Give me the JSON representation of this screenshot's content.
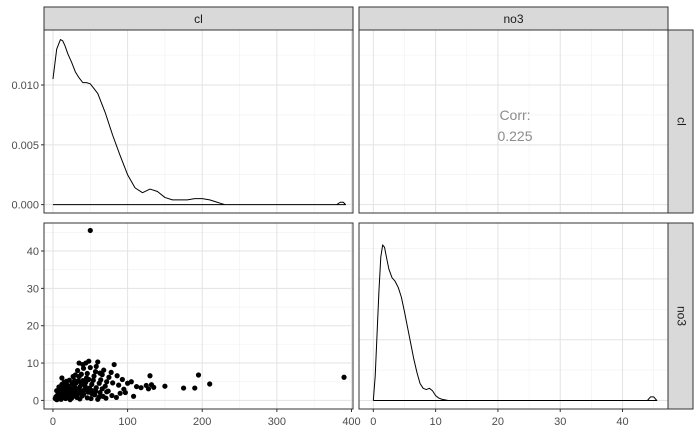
{
  "facet_labels": {
    "columns": [
      "cl",
      "no3"
    ],
    "rows": [
      "cl",
      "no3"
    ]
  },
  "chart_data": [
    {
      "panel": "cl x cl",
      "type": "line",
      "x": [
        0,
        5,
        10,
        13,
        16,
        20,
        25,
        30,
        35,
        40,
        45,
        50,
        60,
        70,
        80,
        90,
        100,
        110,
        120,
        130,
        140,
        150,
        160,
        170,
        180,
        190,
        200,
        210,
        220,
        225,
        230,
        300,
        380,
        385,
        389,
        392,
        0
      ],
      "y": [
        0.0105,
        0.013,
        0.0138,
        0.0137,
        0.0133,
        0.0126,
        0.0119,
        0.0111,
        0.0106,
        0.0102,
        0.0102,
        0.0101,
        0.0093,
        0.0077,
        0.0058,
        0.0041,
        0.0025,
        0.0014,
        0.001,
        0.0013,
        0.0011,
        0.0006,
        0.0004,
        0.0004,
        0.0004,
        0.0005,
        0.0005,
        0.0004,
        0.0002,
        0.0001,
        0.0,
        0.0,
        0.0,
        0.0002,
        0.0002,
        0.0,
        0.0
      ],
      "xlim": [
        -12,
        402
      ],
      "ylim": [
        -0.0007,
        0.0146
      ],
      "yticks": [
        0.0,
        0.005,
        0.01
      ],
      "ytick_labels": [
        "0.000",
        "0.005",
        "0.010"
      ]
    },
    {
      "panel": "no3 x cl",
      "type": "text",
      "text_lines": [
        "Corr:",
        "0.225"
      ],
      "text_color": "#8c8c8c",
      "xlim": [
        -2.3,
        47.3
      ],
      "ylim": [
        -0.7,
        14.6
      ]
    },
    {
      "panel": "cl x no3",
      "type": "scatter",
      "xticks": [
        0,
        100,
        200,
        300,
        400
      ],
      "xtick_labels": [
        "0",
        "100",
        "200",
        "300",
        "400"
      ],
      "yticks": [
        0,
        10,
        20,
        30,
        40
      ],
      "ytick_labels": [
        "0",
        "10",
        "20",
        "30",
        "40"
      ],
      "xlim": [
        -12,
        402
      ],
      "ylim": [
        -2.3,
        47.5
      ],
      "points": [
        [
          50,
          45.5
        ],
        [
          390,
          6.2
        ],
        [
          130,
          6.6
        ],
        [
          195,
          6.8
        ],
        [
          150,
          3.8
        ],
        [
          125,
          4.0
        ],
        [
          175,
          3.3
        ],
        [
          190,
          3.3
        ],
        [
          210,
          4.4
        ],
        [
          135,
          3.5
        ],
        [
          128,
          3.1
        ],
        [
          132,
          4.2
        ],
        [
          100,
          4.6
        ],
        [
          105,
          5.0
        ],
        [
          112,
          3.7
        ],
        [
          95,
          3.0
        ],
        [
          93,
          5.6
        ],
        [
          88,
          4.1
        ],
        [
          82,
          9.6
        ],
        [
          78,
          7.5
        ],
        [
          75,
          6.2
        ],
        [
          72,
          5.0
        ],
        [
          70,
          3.8
        ],
        [
          68,
          8.1
        ],
        [
          66,
          6.9
        ],
        [
          64,
          5.5
        ],
        [
          62,
          4.6
        ],
        [
          60,
          10.3
        ],
        [
          58,
          9.1
        ],
        [
          57,
          7.7
        ],
        [
          55,
          6.5
        ],
        [
          54,
          5.4
        ],
        [
          52,
          4.3
        ],
        [
          50,
          8.8
        ],
        [
          49,
          3.3
        ],
        [
          48,
          10.5
        ],
        [
          47,
          2.2
        ],
        [
          46,
          7.2
        ],
        [
          45,
          6.0
        ],
        [
          44,
          4.9
        ],
        [
          43,
          3.9
        ],
        [
          42,
          2.8
        ],
        [
          41,
          1.6
        ],
        [
          40,
          9.6
        ],
        [
          40,
          5.3
        ],
        [
          39,
          1.2
        ],
        [
          38,
          4.4
        ],
        [
          37,
          2.5
        ],
        [
          36,
          3.6
        ],
        [
          35,
          6.4
        ],
        [
          35,
          1.9
        ],
        [
          34,
          5.2
        ],
        [
          33,
          3.0
        ],
        [
          32,
          0.8
        ],
        [
          31,
          4.7
        ],
        [
          30,
          2.2
        ],
        [
          30,
          6.8
        ],
        [
          29,
          3.6
        ],
        [
          28,
          1.2
        ],
        [
          27,
          2.8
        ],
        [
          26,
          4.5
        ],
        [
          25,
          0.6
        ],
        [
          24,
          1.9
        ],
        [
          23,
          3.3
        ],
        [
          22,
          5.4
        ],
        [
          21,
          0.9
        ],
        [
          20,
          2.4
        ],
        [
          20,
          4.0
        ],
        [
          19,
          1.4
        ],
        [
          18,
          3.0
        ],
        [
          17,
          0.5
        ],
        [
          16,
          2.0
        ],
        [
          15,
          4.8
        ],
        [
          15,
          3.6
        ],
        [
          14,
          1.0
        ],
        [
          13,
          2.6
        ],
        [
          12,
          6.0
        ],
        [
          11,
          0.3
        ],
        [
          10,
          1.6
        ],
        [
          10,
          3.2
        ],
        [
          9,
          0.9
        ],
        [
          8,
          2.2
        ],
        [
          7,
          0.4
        ],
        [
          6,
          1.4
        ],
        [
          5,
          0.2
        ],
        [
          5,
          2.6
        ],
        [
          4,
          1.0
        ],
        [
          3,
          0.5
        ],
        [
          56,
          1.5
        ],
        [
          60,
          0.3
        ],
        [
          63,
          2.1
        ],
        [
          67,
          1.1
        ],
        [
          71,
          0.6
        ],
        [
          74,
          2.5
        ],
        [
          79,
          1.3
        ],
        [
          85,
          0.8
        ],
        [
          90,
          1.9
        ],
        [
          63,
          7.3
        ],
        [
          58,
          3.4
        ],
        [
          52,
          1.8
        ],
        [
          46,
          0.7
        ],
        [
          38,
          7.0
        ],
        [
          33,
          8.0
        ],
        [
          27,
          6.4
        ],
        [
          45,
          3.1
        ],
        [
          53,
          2.6
        ],
        [
          48,
          5.6
        ],
        [
          41,
          8.6
        ],
        [
          36,
          0.4
        ],
        [
          29,
          5.3
        ],
        [
          23,
          0.2
        ],
        [
          18,
          5.1
        ],
        [
          12,
          4.3
        ],
        [
          8,
          3.6
        ],
        [
          66,
          3.1
        ],
        [
          72,
          2.3
        ],
        [
          80,
          4.7
        ],
        [
          86,
          6.6
        ],
        [
          97,
          2.1
        ],
        [
          108,
          1.1
        ],
        [
          118,
          3.4
        ],
        [
          35,
          10.0
        ],
        [
          44,
          10.0
        ],
        [
          62,
          0.9
        ],
        [
          57,
          2.5
        ],
        [
          51,
          0.5
        ],
        [
          32,
          1.6
        ],
        [
          25,
          2.9
        ],
        [
          14,
          0.8
        ],
        [
          6,
          0.3
        ]
      ]
    },
    {
      "panel": "no3 x no3",
      "type": "line",
      "xticks": [
        0,
        10,
        20,
        30,
        40
      ],
      "xtick_labels": [
        "0",
        "10",
        "20",
        "30",
        "40"
      ],
      "x": [
        0,
        0.3,
        0.6,
        0.9,
        1.2,
        1.5,
        1.8,
        2.1,
        2.5,
        3.0,
        3.5,
        4.0,
        4.5,
        5.0,
        5.5,
        6.0,
        6.5,
        7.0,
        7.5,
        8.0,
        8.5,
        9.0,
        9.5,
        10.0,
        10.5,
        11.0,
        11.5,
        12.0,
        44.0,
        44.5,
        45.0,
        45.5,
        0
      ],
      "y": [
        0.0,
        0.02,
        0.055,
        0.09,
        0.118,
        0.128,
        0.126,
        0.118,
        0.108,
        0.101,
        0.098,
        0.093,
        0.085,
        0.073,
        0.06,
        0.047,
        0.034,
        0.023,
        0.014,
        0.01,
        0.009,
        0.01,
        0.008,
        0.004,
        0.002,
        0.001,
        0.0005,
        0.0,
        0.0,
        0.003,
        0.003,
        0.0,
        0.0
      ],
      "xlim": [
        -2.3,
        47.3
      ],
      "ylim": [
        -0.007,
        0.146
      ]
    }
  ]
}
